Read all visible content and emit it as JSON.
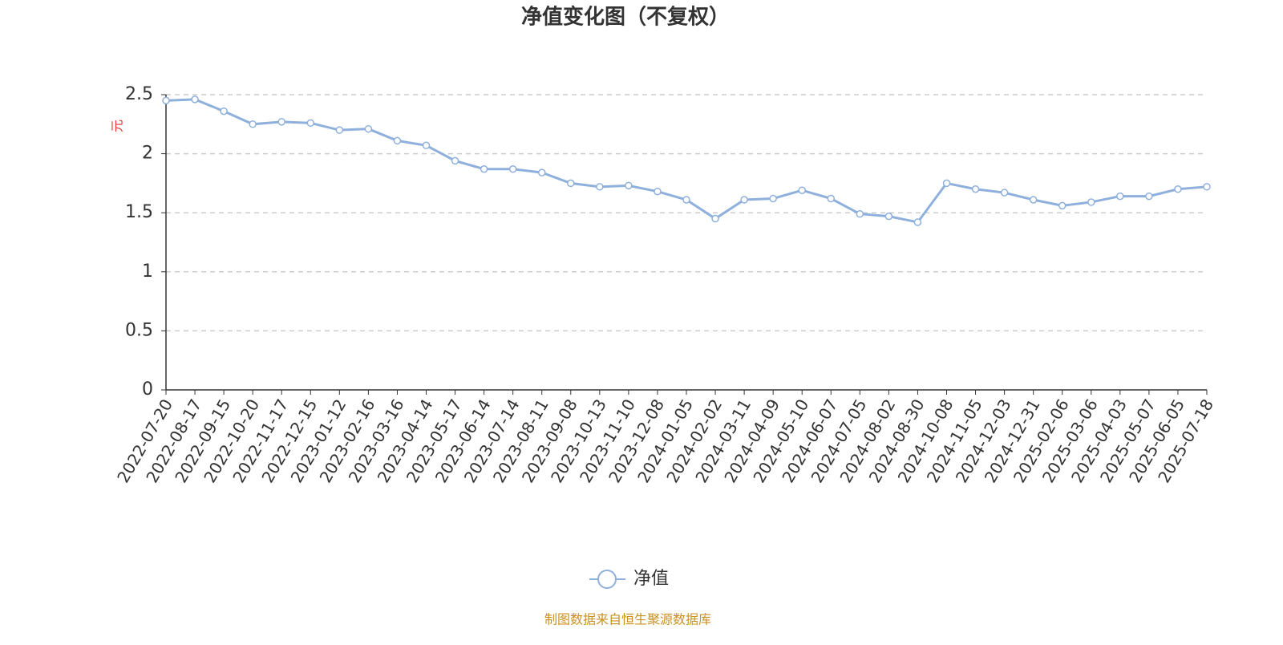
{
  "chart_data": {
    "type": "line",
    "title": "净值变化图（不复权）",
    "y_label": "元",
    "categories": [
      "2022-07-20",
      "2022-08-17",
      "2022-09-15",
      "2022-10-20",
      "2022-11-17",
      "2022-12-15",
      "2023-01-12",
      "2023-02-16",
      "2023-03-16",
      "2023-04-14",
      "2023-05-17",
      "2023-06-14",
      "2023-07-14",
      "2023-08-11",
      "2023-09-08",
      "2023-10-13",
      "2023-11-10",
      "2023-12-08",
      "2024-01-05",
      "2024-02-02",
      "2024-03-11",
      "2024-04-09",
      "2024-05-10",
      "2024-06-07",
      "2024-07-05",
      "2024-08-02",
      "2024-08-30",
      "2024-10-08",
      "2024-11-05",
      "2024-12-03",
      "2024-12-31",
      "2025-02-06",
      "2025-03-06",
      "2025-04-03",
      "2025-05-07",
      "2025-06-05",
      "2025-07-18"
    ],
    "series": [
      {
        "name": "净值",
        "color": "#8fb0dc",
        "values": [
          2.45,
          2.46,
          2.36,
          2.25,
          2.27,
          2.26,
          2.2,
          2.21,
          2.11,
          2.07,
          1.94,
          1.87,
          1.87,
          1.84,
          1.75,
          1.72,
          1.73,
          1.68,
          1.61,
          1.45,
          1.61,
          1.62,
          1.69,
          1.62,
          1.49,
          1.47,
          1.42,
          1.75,
          1.7,
          1.67,
          1.61,
          1.56,
          1.59,
          1.64,
          1.64,
          1.7,
          1.72
        ]
      }
    ],
    "ylim": [
      0,
      2.5
    ],
    "yticks": [
      0,
      0.5,
      1,
      1.5,
      2,
      2.5
    ],
    "grid": true,
    "legend": "bottom",
    "source": "制图数据来自恒生聚源数据库"
  }
}
